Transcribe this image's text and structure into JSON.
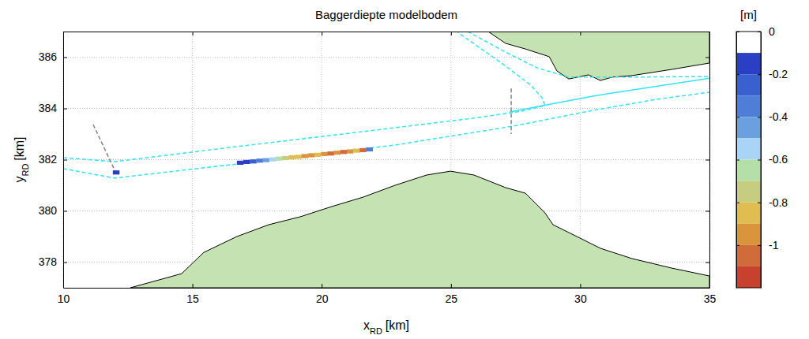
{
  "chart_data": {
    "type": "map",
    "title": "Baggerdiepte modelbodem",
    "xlabel": {
      "text": "x",
      "sub": "RD",
      "unit": "[km]"
    },
    "ylabel": {
      "text": "y",
      "sub": "RD",
      "unit": "[km]"
    },
    "xlim": [
      10,
      35
    ],
    "xticks": [
      10,
      15,
      20,
      25,
      30,
      35
    ],
    "ylim": [
      377,
      387
    ],
    "yticks": [
      378,
      380,
      382,
      384,
      386
    ],
    "grid": true,
    "series": [
      {
        "type": "polygon",
        "color": "#c5e3b2",
        "x": [
          12.6,
          14.58,
          15.44,
          16.72,
          17.95,
          19.17,
          20.39,
          21.61,
          22.84,
          24.06,
          24.98,
          25.89,
          27.11,
          27.88,
          28.34,
          28.64,
          28.95,
          29.87,
          30.78,
          32.0,
          33.53,
          35.0,
          35.0,
          12.6
        ],
        "y": [
          377.0,
          377.55,
          378.38,
          379.0,
          379.46,
          379.77,
          380.17,
          380.54,
          381.0,
          381.4,
          381.55,
          381.4,
          380.91,
          380.69,
          380.23,
          379.92,
          379.46,
          379.0,
          378.54,
          378.14,
          377.77,
          377.46,
          377.0,
          377.0
        ]
      },
      {
        "type": "polygon",
        "color": "#c5e3b2",
        "x": [
          26.44,
          27.11,
          27.88,
          28.8,
          29.1,
          29.56,
          30.32,
          30.78,
          31.24,
          32.0,
          33.53,
          35.0,
          35.0
        ],
        "y": [
          387.0,
          386.54,
          386.32,
          386.02,
          385.46,
          385.15,
          385.31,
          385.09,
          385.22,
          385.28,
          385.52,
          385.77,
          387.0
        ]
      },
      {
        "type": "line",
        "line_style": "dashed",
        "color": "#35e2f2",
        "x": [
          10.0,
          11.99,
          16.72,
          21.31,
          25.89,
          27.73,
          28.64,
          28.52,
          28.09,
          26.96,
          25.22
        ],
        "y": [
          382.08,
          381.92,
          382.51,
          383.06,
          383.62,
          383.89,
          384.11,
          384.42,
          384.91,
          385.77,
          387.0
        ]
      },
      {
        "type": "line",
        "line_style": "dashed",
        "color": "#35e2f2",
        "x": [
          25.65,
          27.11,
          28.34,
          29.56,
          32.0,
          35.0
        ],
        "y": [
          387.0,
          386.2,
          385.58,
          385.22,
          385.22,
          385.25
        ]
      },
      {
        "type": "line",
        "line_style": "dashed",
        "color": "#35e2f2",
        "x": [
          10.0,
          11.99,
          16.72,
          22.84,
          27.42,
          30.48,
          32.92,
          35.0
        ],
        "y": [
          381.65,
          381.28,
          381.83,
          382.57,
          383.31,
          383.92,
          384.35,
          384.63
        ]
      },
      {
        "type": "line",
        "line_style": "solid",
        "color": "#35e2f2",
        "x": [
          27.27,
          30.48,
          35.0
        ],
        "y": [
          383.86,
          384.48,
          385.18
        ]
      },
      {
        "type": "line",
        "line_style": "dashed",
        "color": "#808080",
        "x": [
          11.16,
          12.08
        ],
        "y": [
          383.37,
          381.4
        ]
      },
      {
        "type": "line",
        "line_style": "dashed",
        "color": "#808080",
        "x": [
          27.33,
          27.33
        ],
        "y": [
          384.78,
          383.0
        ]
      }
    ],
    "cells": {
      "x": [
        12.05,
        16.85,
        17.1,
        17.35,
        17.6,
        17.85,
        18.1,
        18.35,
        18.6,
        18.85,
        19.1,
        19.35,
        19.6,
        19.85,
        20.1,
        20.35,
        20.6,
        20.85,
        21.1,
        21.35,
        21.6,
        21.85
      ],
      "y": [
        381.5,
        381.88,
        381.91,
        381.93,
        381.96,
        381.98,
        382.01,
        382.04,
        382.06,
        382.09,
        382.11,
        382.14,
        382.17,
        382.19,
        382.22,
        382.24,
        382.27,
        382.3,
        382.32,
        382.35,
        382.37,
        382.4
      ],
      "values": [
        -0.15,
        -0.15,
        -0.15,
        -0.25,
        -0.35,
        -0.45,
        -0.55,
        -0.65,
        -0.75,
        -0.85,
        -0.85,
        -0.95,
        -0.95,
        -0.85,
        -0.95,
        -1.05,
        -0.95,
        -1.05,
        -0.95,
        -0.85,
        -1.05,
        -0.35
      ]
    },
    "colorbar": {
      "label": "[m]",
      "range": [
        -1.2,
        0
      ],
      "ticks": [
        0,
        -0.2,
        -0.4,
        -0.6,
        -0.8,
        -1
      ],
      "levels": [
        0,
        -0.1,
        -0.2,
        -0.3,
        -0.4,
        -0.5,
        -0.6,
        -0.7,
        -0.8,
        -0.9,
        -1.0,
        -1.1,
        -1.2
      ],
      "colors": [
        "#ffffff",
        "#2a3fc4",
        "#3a5fcf",
        "#4f7ed8",
        "#6aa0e0",
        "#a9d4f5",
        "#b5dfa8",
        "#c6cc80",
        "#e0bd50",
        "#d9943c",
        "#d06b3a",
        "#c8412f"
      ]
    }
  }
}
